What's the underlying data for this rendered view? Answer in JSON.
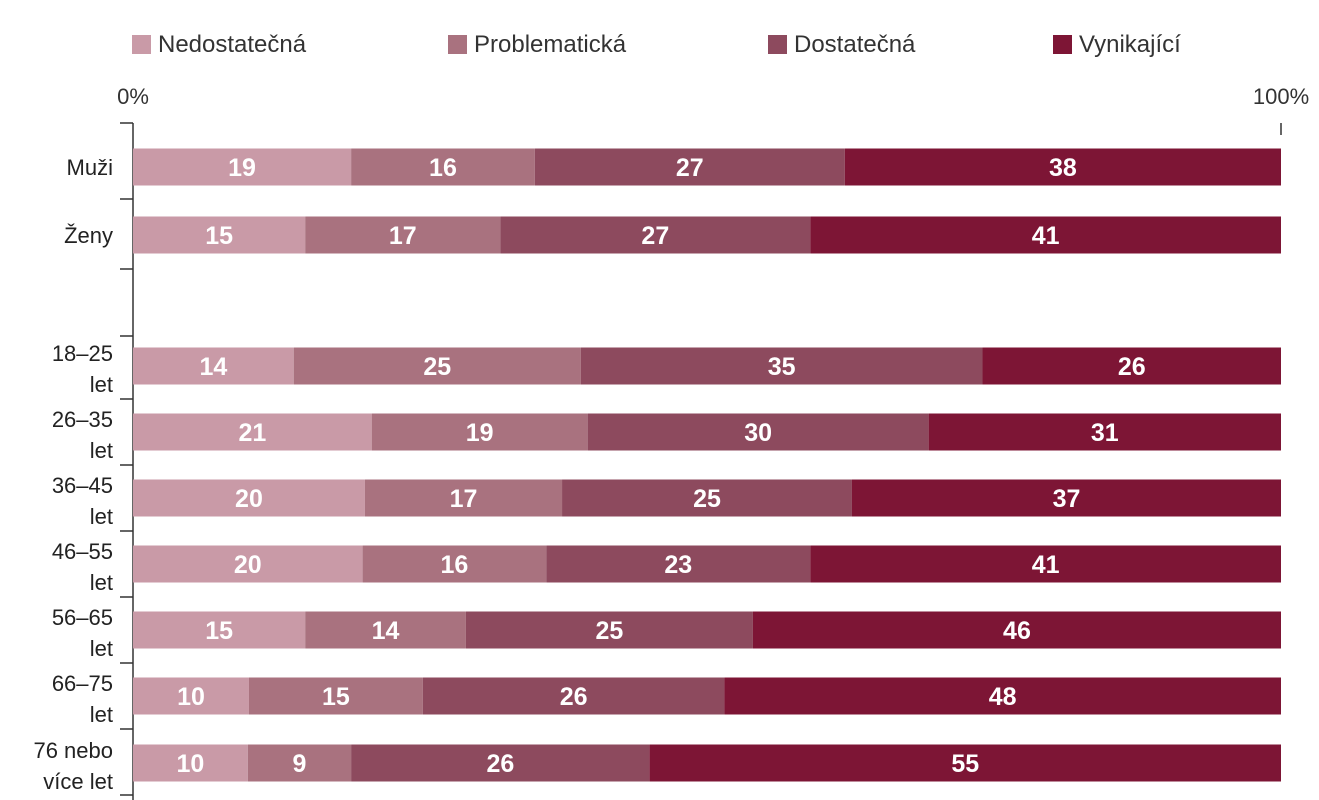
{
  "chart_data": {
    "type": "bar",
    "orientation": "horizontal",
    "stacked": true,
    "normalized": true,
    "xlim": [
      0,
      100
    ],
    "x_tick_labels": [
      "0%",
      "100%"
    ],
    "legend_position": "top",
    "grid": false,
    "categories": [
      {
        "id": "muzi",
        "label": [
          "Muži"
        ]
      },
      {
        "id": "zeny",
        "label": [
          "Ženy"
        ]
      },
      {
        "id": "a18_25",
        "label": [
          "18–25",
          "let"
        ]
      },
      {
        "id": "a26_35",
        "label": [
          "26–35",
          "let"
        ]
      },
      {
        "id": "a36_45",
        "label": [
          "36–45",
          "let"
        ]
      },
      {
        "id": "a46_55",
        "label": [
          "46–55",
          "let"
        ]
      },
      {
        "id": "a56_65",
        "label": [
          "56–65",
          "let"
        ]
      },
      {
        "id": "a66_75",
        "label": [
          "66–75",
          "let"
        ]
      },
      {
        "id": "a76",
        "label": [
          "76 nebo",
          "více let"
        ]
      }
    ],
    "series": [
      {
        "name": "Nedostatečná",
        "color": "#c99aa7",
        "values": [
          19,
          15,
          14,
          21,
          20,
          20,
          15,
          10,
          10
        ]
      },
      {
        "name": "Problematická",
        "color": "#a9727f",
        "values": [
          16,
          17,
          25,
          19,
          17,
          16,
          14,
          15,
          9
        ]
      },
      {
        "name": "Dostatečná",
        "color": "#8d4a5e",
        "values": [
          27,
          27,
          35,
          30,
          25,
          23,
          25,
          26,
          26
        ]
      },
      {
        "name": "Vynikající",
        "color": "#7d1535",
        "values": [
          38,
          41,
          26,
          31,
          37,
          41,
          46,
          48,
          55
        ]
      }
    ]
  }
}
